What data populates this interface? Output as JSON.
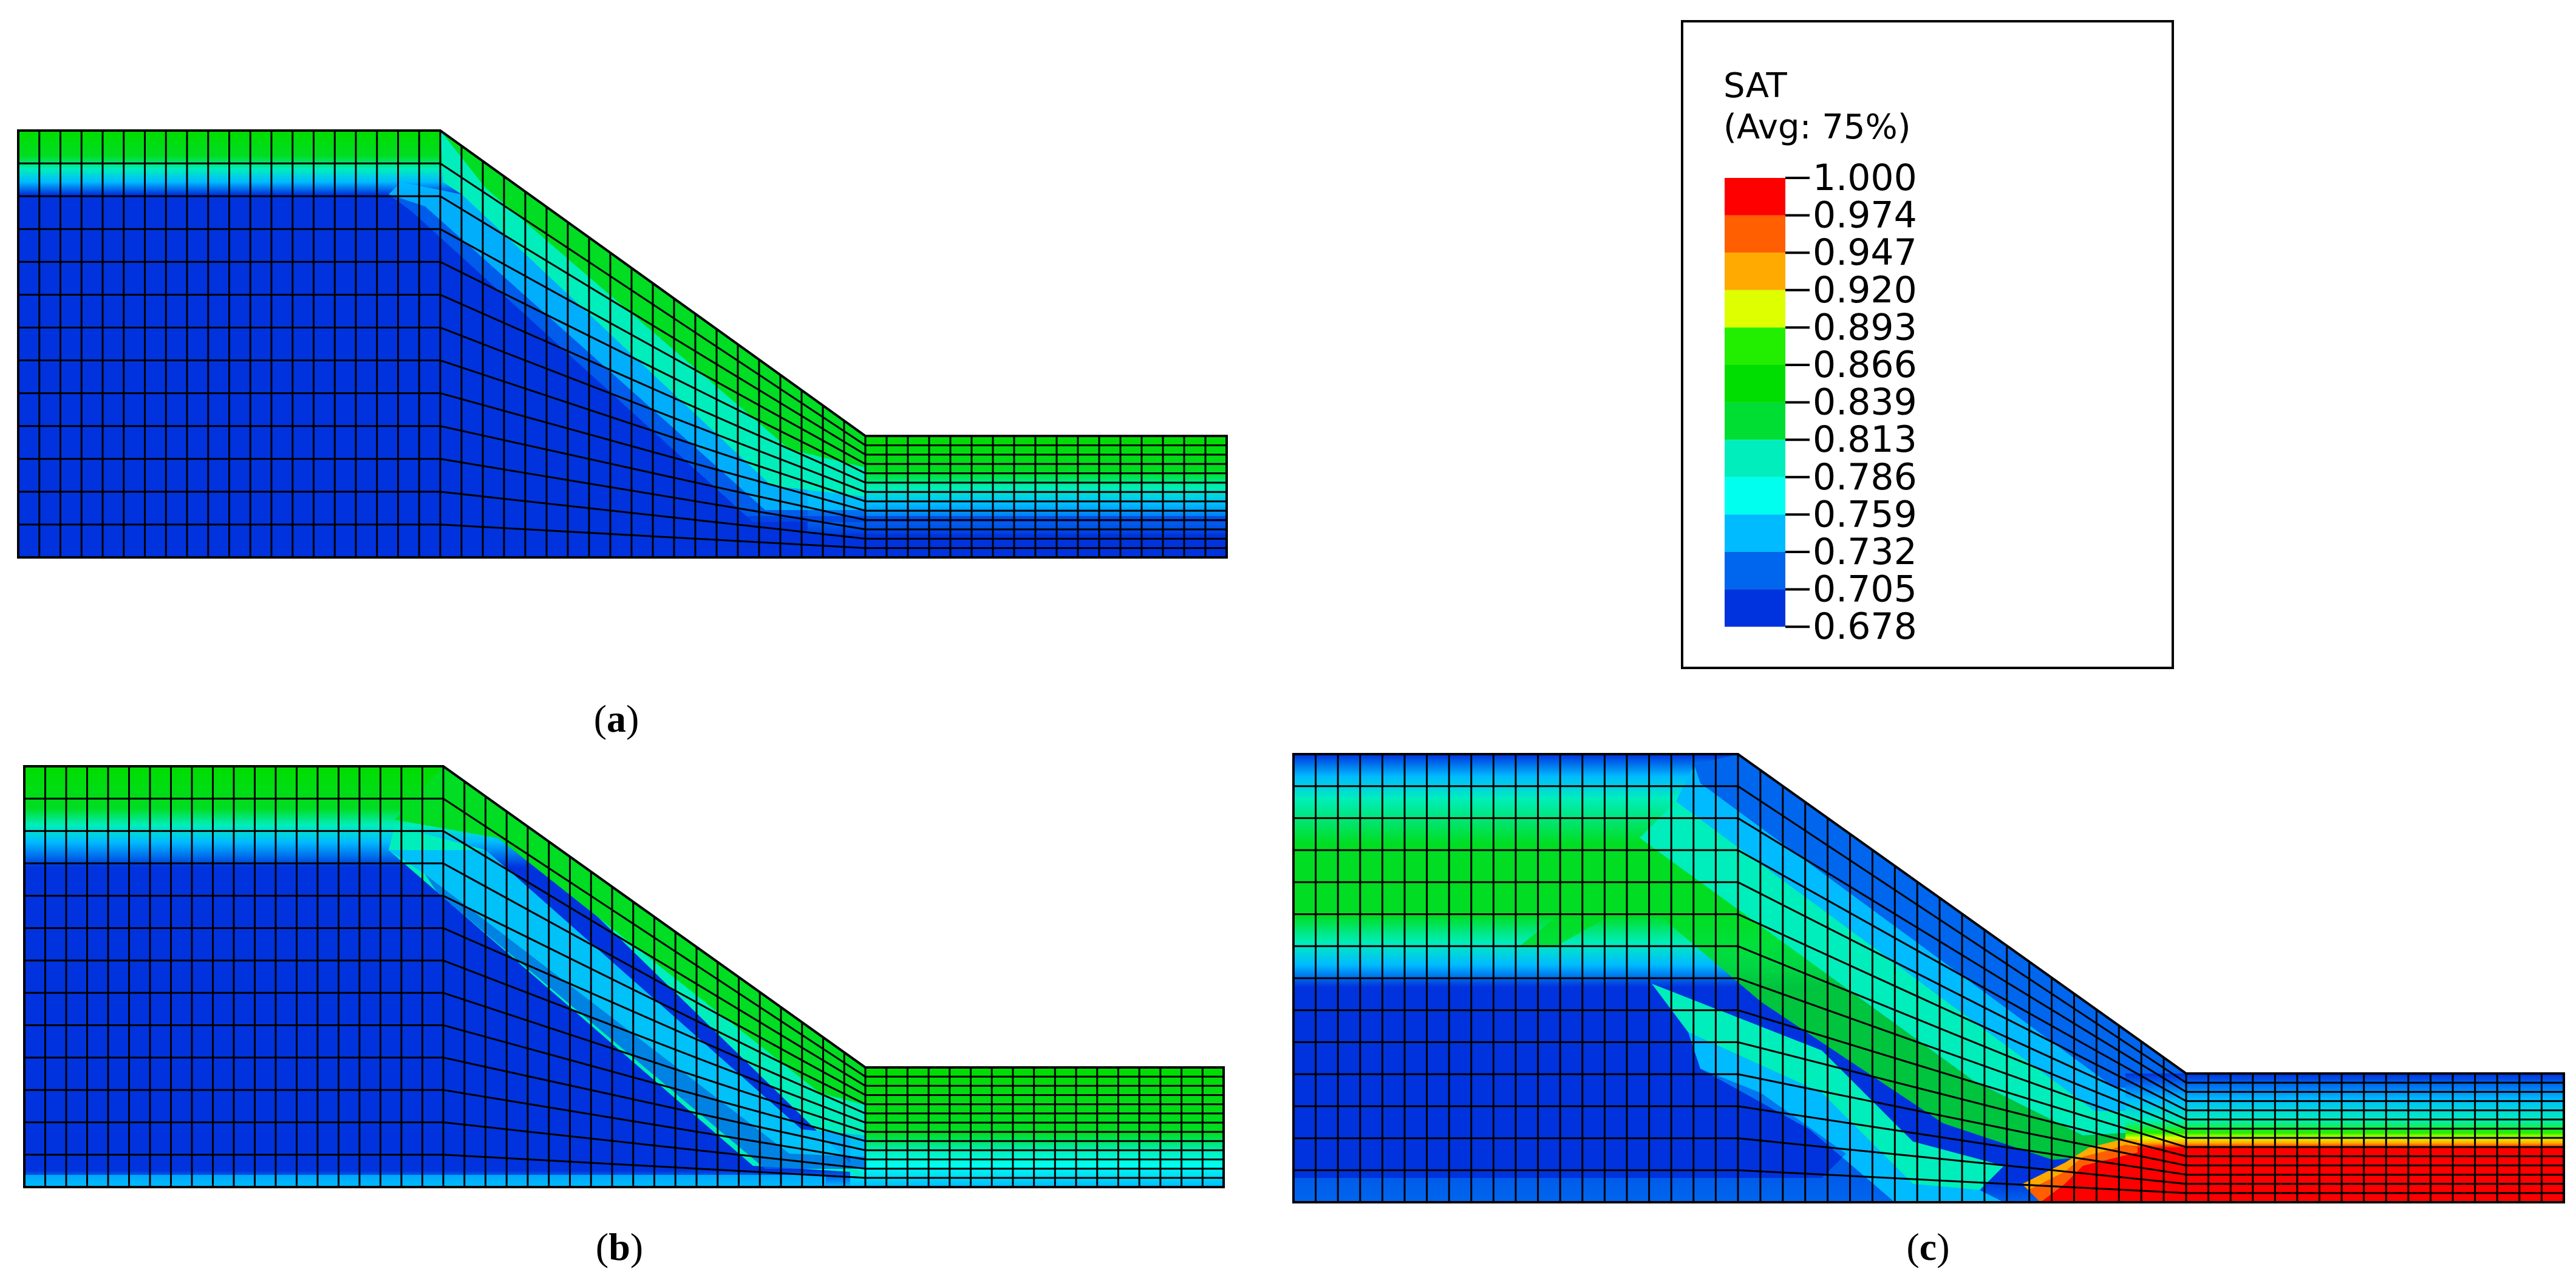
{
  "legend": {
    "variable": "SAT",
    "averaging": "(Avg: 75%)",
    "levels": [
      {
        "value": "1.000",
        "color": "#FF0000"
      },
      {
        "value": "0.974",
        "color": "#FF5F00"
      },
      {
        "value": "0.947",
        "color": "#FFAA00"
      },
      {
        "value": "0.920",
        "color": "#DDFF00"
      },
      {
        "value": "0.893",
        "color": "#22EE00"
      },
      {
        "value": "0.866",
        "color": "#00DD00"
      },
      {
        "value": "0.839",
        "color": "#00DD33"
      },
      {
        "value": "0.813",
        "color": "#00EEBB"
      },
      {
        "value": "0.786",
        "color": "#00FFEE"
      },
      {
        "value": "0.759",
        "color": "#00BBFF"
      },
      {
        "value": "0.732",
        "color": "#0066EE"
      },
      {
        "value": "0.705",
        "color": "#0033DD"
      },
      {
        "value": "0.678",
        "color": "#0000FF"
      }
    ]
  },
  "panels": [
    {
      "open": "(",
      "letter": "a",
      "close": ")"
    },
    {
      "open": "(",
      "letter": "b",
      "close": ")"
    },
    {
      "open": "(",
      "letter": "c",
      "close": ")"
    }
  ]
}
